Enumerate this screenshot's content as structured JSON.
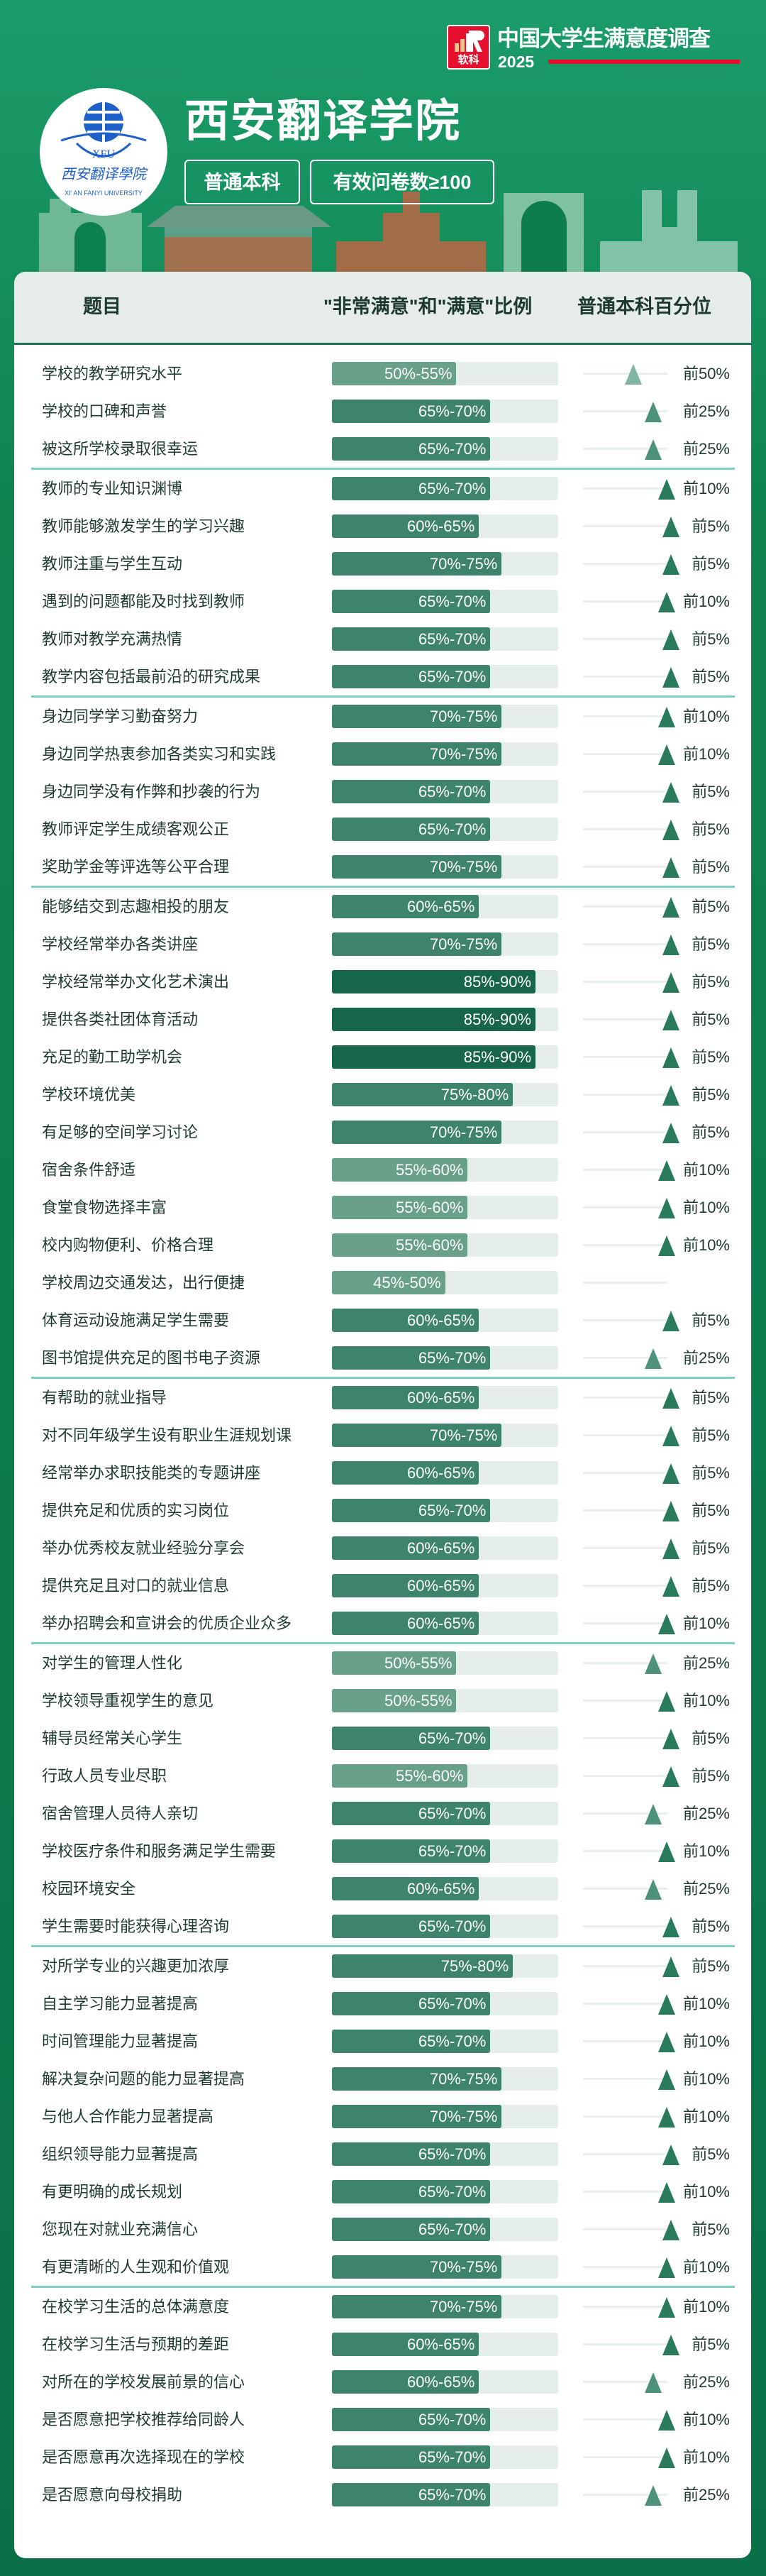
{
  "brand": {
    "logo_text": "软科",
    "survey_title": "中国大学生满意度调查",
    "year": "2025",
    "red": "#e60f2d"
  },
  "school": {
    "name": "西安翻译学院",
    "logo_text": "西安翻译学院 XFU XI' AN FANYI UNIVERSITY",
    "type": "普通本科",
    "sample": "有效问卷数≥100"
  },
  "table": {
    "headers": {
      "item": "题目",
      "ratio": "\"非常满意\"和\"满意\"比例",
      "percentile": "普通本科百分位"
    },
    "colors": {
      "fill_low": "#68a08a",
      "fill_mid": "#3d846a",
      "fill_high": "#17664c",
      "track": "#e5eeea",
      "divider": "#7fcfc4"
    },
    "groups": [
      [
        {
          "label": "学校的教学研究水平",
          "range": "50%-55%",
          "percentile": "前50%"
        },
        {
          "label": "学校的口碑和声誉",
          "range": "65%-70%",
          "percentile": "前25%"
        },
        {
          "label": "被这所学校录取很幸运",
          "range": "65%-70%",
          "percentile": "前25%"
        }
      ],
      [
        {
          "label": "教师的专业知识渊博",
          "range": "65%-70%",
          "percentile": "前10%"
        },
        {
          "label": "教师能够激发学生的学习兴趣",
          "range": "60%-65%",
          "percentile": "前5%"
        },
        {
          "label": "教师注重与学生互动",
          "range": "70%-75%",
          "percentile": "前5%"
        },
        {
          "label": "遇到的问题都能及时找到教师",
          "range": "65%-70%",
          "percentile": "前10%"
        },
        {
          "label": "教师对教学充满热情",
          "range": "65%-70%",
          "percentile": "前5%"
        },
        {
          "label": "教学内容包括最前沿的研究成果",
          "range": "65%-70%",
          "percentile": "前5%"
        }
      ],
      [
        {
          "label": "身边同学学习勤奋努力",
          "range": "70%-75%",
          "percentile": "前10%"
        },
        {
          "label": "身边同学热衷参加各类实习和实践",
          "range": "70%-75%",
          "percentile": "前10%"
        },
        {
          "label": "身边同学没有作弊和抄袭的行为",
          "range": "65%-70%",
          "percentile": "前5%"
        },
        {
          "label": "教师评定学生成绩客观公正",
          "range": "65%-70%",
          "percentile": "前5%"
        },
        {
          "label": "奖助学金等评选等公平合理",
          "range": "70%-75%",
          "percentile": "前5%"
        }
      ],
      [
        {
          "label": "能够结交到志趣相投的朋友",
          "range": "60%-65%",
          "percentile": "前5%"
        },
        {
          "label": "学校经常举办各类讲座",
          "range": "70%-75%",
          "percentile": "前5%"
        },
        {
          "label": "学校经常举办文化艺术演出",
          "range": "85%-90%",
          "percentile": "前5%"
        },
        {
          "label": "提供各类社团体育活动",
          "range": "85%-90%",
          "percentile": "前5%"
        },
        {
          "label": "充足的勤工助学机会",
          "range": "85%-90%",
          "percentile": "前5%"
        },
        {
          "label": "学校环境优美",
          "range": "75%-80%",
          "percentile": "前5%"
        },
        {
          "label": "有足够的空间学习讨论",
          "range": "70%-75%",
          "percentile": "前5%"
        },
        {
          "label": "宿舍条件舒适",
          "range": "55%-60%",
          "percentile": "前10%"
        },
        {
          "label": "食堂食物选择丰富",
          "range": "55%-60%",
          "percentile": "前10%"
        },
        {
          "label": "校内购物便利、价格合理",
          "range": "55%-60%",
          "percentile": "前10%"
        },
        {
          "label": "学校周边交通发达，出行便捷",
          "range": "45%-50%",
          "percentile": ""
        },
        {
          "label": "体育运动设施满足学生需要",
          "range": "60%-65%",
          "percentile": "前5%"
        },
        {
          "label": "图书馆提供充足的图书电子资源",
          "range": "65%-70%",
          "percentile": "前25%"
        }
      ],
      [
        {
          "label": "有帮助的就业指导",
          "range": "60%-65%",
          "percentile": "前5%"
        },
        {
          "label": "对不同年级学生设有职业生涯规划课",
          "range": "70%-75%",
          "percentile": "前5%"
        },
        {
          "label": "经常举办求职技能类的专题讲座",
          "range": "60%-65%",
          "percentile": "前5%"
        },
        {
          "label": "提供充足和优质的实习岗位",
          "range": "65%-70%",
          "percentile": "前5%"
        },
        {
          "label": "举办优秀校友就业经验分享会",
          "range": "60%-65%",
          "percentile": "前5%"
        },
        {
          "label": "提供充足且对口的就业信息",
          "range": "60%-65%",
          "percentile": "前5%"
        },
        {
          "label": "举办招聘会和宣讲会的优质企业众多",
          "range": "60%-65%",
          "percentile": "前10%"
        }
      ],
      [
        {
          "label": "对学生的管理人性化",
          "range": "50%-55%",
          "percentile": "前25%"
        },
        {
          "label": "学校领导重视学生的意见",
          "range": "50%-55%",
          "percentile": "前10%"
        },
        {
          "label": "辅导员经常关心学生",
          "range": "65%-70%",
          "percentile": "前5%"
        },
        {
          "label": "行政人员专业尽职",
          "range": "55%-60%",
          "percentile": "前5%"
        },
        {
          "label": "宿舍管理人员待人亲切",
          "range": "65%-70%",
          "percentile": "前25%"
        },
        {
          "label": "学校医疗条件和服务满足学生需要",
          "range": "65%-70%",
          "percentile": "前10%"
        },
        {
          "label": "校园环境安全",
          "range": "60%-65%",
          "percentile": "前25%"
        },
        {
          "label": "学生需要时能获得心理咨询",
          "range": "65%-70%",
          "percentile": "前5%"
        }
      ],
      [
        {
          "label": "对所学专业的兴趣更加浓厚",
          "range": "75%-80%",
          "percentile": "前5%"
        },
        {
          "label": "自主学习能力显著提高",
          "range": "65%-70%",
          "percentile": "前10%"
        },
        {
          "label": "时间管理能力显著提高",
          "range": "65%-70%",
          "percentile": "前10%"
        },
        {
          "label": "解决复杂问题的能力显著提高",
          "range": "70%-75%",
          "percentile": "前10%"
        },
        {
          "label": "与他人合作能力显著提高",
          "range": "70%-75%",
          "percentile": "前10%"
        },
        {
          "label": "组织领导能力显著提高",
          "range": "65%-70%",
          "percentile": "前5%"
        },
        {
          "label": "有更明确的成长规划",
          "range": "65%-70%",
          "percentile": "前10%"
        },
        {
          "label": "您现在对就业充满信心",
          "range": "65%-70%",
          "percentile": "前5%"
        },
        {
          "label": "有更清晰的人生观和价值观",
          "range": "70%-75%",
          "percentile": "前10%"
        }
      ],
      [
        {
          "label": "在校学习生活的总体满意度",
          "range": "70%-75%",
          "percentile": "前10%"
        },
        {
          "label": "在校学习生活与预期的差距",
          "range": "60%-65%",
          "percentile": "前5%"
        },
        {
          "label": "对所在的学校发展前景的信心",
          "range": "60%-65%",
          "percentile": "前25%"
        },
        {
          "label": "是否愿意把学校推荐给同龄人",
          "range": "65%-70%",
          "percentile": "前10%"
        },
        {
          "label": "是否愿意再次选择现在的学校",
          "range": "65%-70%",
          "percentile": "前10%"
        },
        {
          "label": "是否愿意向母校捐助",
          "range": "65%-70%",
          "percentile": "前25%"
        }
      ]
    ]
  }
}
